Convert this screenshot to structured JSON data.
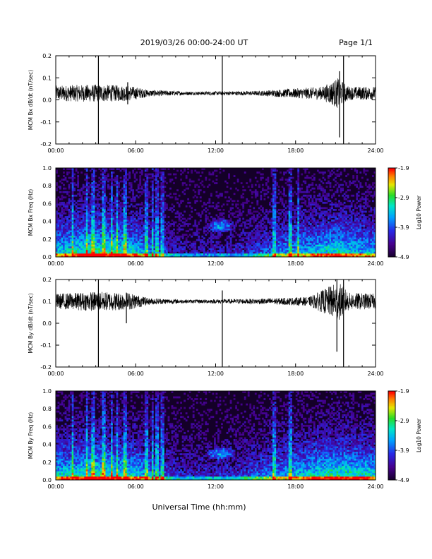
{
  "header": {
    "title": "2019/03/26  00:00-24:00 UT",
    "page": "Page 1/1"
  },
  "xlabel": "Universal Time (hh:mm)",
  "colorbar_label": "Log10 Power",
  "chart_data": [
    {
      "type": "line",
      "ylabel": "MCM Bx dB/dt (nT/sec)",
      "xlim": [
        0,
        24
      ],
      "ylim": [
        -0.2,
        0.2
      ],
      "x_ticks": [
        "00:00",
        "06:00",
        "12:00",
        "18:00",
        "24:00"
      ],
      "y_ticks": [
        "-0.2",
        "-0.1",
        "0.0",
        "0.1",
        "0.2"
      ],
      "baseline": 0.03,
      "noise_envelope": [
        {
          "x": 0,
          "amp": 0.035
        },
        {
          "x": 3,
          "amp": 0.04
        },
        {
          "x": 5.5,
          "amp": 0.035
        },
        {
          "x": 7,
          "amp": 0.015
        },
        {
          "x": 10,
          "amp": 0.008
        },
        {
          "x": 15,
          "amp": 0.01
        },
        {
          "x": 20,
          "amp": 0.03
        },
        {
          "x": 21.2,
          "amp": 0.07
        },
        {
          "x": 22,
          "amp": 0.03
        },
        {
          "x": 24,
          "amp": 0.03
        }
      ],
      "spikes": [
        {
          "x": 3.2,
          "ymin": -0.2,
          "ymax": 0.2
        },
        {
          "x": 12.5,
          "ymin": -0.2,
          "ymax": 0.2
        },
        {
          "x": 21.6,
          "ymin": -0.2,
          "ymax": 0.2
        },
        {
          "x": 21.3,
          "ymin": -0.17,
          "ymax": 0.13
        },
        {
          "x": 5.4,
          "ymin": -0.02,
          "ymax": 0.08
        }
      ]
    },
    {
      "type": "heatmap",
      "ylabel": "MCM Bx Freq (Hz)",
      "xlim": [
        0,
        24
      ],
      "ylim": [
        0.0,
        1.0
      ],
      "x_ticks": [
        "00:00",
        "06:00",
        "12:00",
        "18:00",
        "24:00"
      ],
      "y_ticks": [
        "0.0",
        "0.2",
        "0.4",
        "0.6",
        "0.8",
        "1.0"
      ],
      "colorbar": {
        "min": -4.9,
        "max": -1.9,
        "ticks": [
          "-1.9",
          "-2.9",
          "-3.9",
          "-4.9"
        ]
      },
      "activity": [
        {
          "x": 0,
          "level": 0.55
        },
        {
          "x": 3,
          "level": 0.7
        },
        {
          "x": 6,
          "level": 0.6
        },
        {
          "x": 8,
          "level": 0.3
        },
        {
          "x": 10,
          "level": 0.2
        },
        {
          "x": 14,
          "level": 0.25
        },
        {
          "x": 17,
          "level": 0.45
        },
        {
          "x": 21,
          "level": 0.65
        },
        {
          "x": 24,
          "level": 0.5
        }
      ],
      "vertical_bands": [
        1.3,
        2.3,
        2.8,
        3.6,
        4.2,
        4.6,
        5.2,
        6.8,
        7.3,
        7.6,
        8.0,
        16.4,
        17.6,
        18.2
      ],
      "blob": {
        "x": 12.4,
        "freq": 0.35,
        "width": 2.2,
        "height": 0.18
      }
    },
    {
      "type": "line",
      "ylabel": "MCM By dB/dt (nT/sec)",
      "xlim": [
        0,
        24
      ],
      "ylim": [
        -0.2,
        0.2
      ],
      "x_ticks": [
        "00:00",
        "06:00",
        "12:00",
        "18:00",
        "24:00"
      ],
      "y_ticks": [
        "-0.2",
        "-0.1",
        "0.0",
        "0.1",
        "0.2"
      ],
      "baseline": 0.1,
      "noise_envelope": [
        {
          "x": 0,
          "amp": 0.035
        },
        {
          "x": 3,
          "amp": 0.045
        },
        {
          "x": 5.5,
          "amp": 0.04
        },
        {
          "x": 7,
          "amp": 0.015
        },
        {
          "x": 10,
          "amp": 0.008
        },
        {
          "x": 15,
          "amp": 0.012
        },
        {
          "x": 19,
          "amp": 0.02
        },
        {
          "x": 21.2,
          "amp": 0.09
        },
        {
          "x": 22,
          "amp": 0.04
        },
        {
          "x": 24,
          "amp": 0.035
        }
      ],
      "spikes": [
        {
          "x": 3.2,
          "ymin": -0.2,
          "ymax": 0.2
        },
        {
          "x": 12.5,
          "ymin": -0.2,
          "ymax": 0.15
        },
        {
          "x": 21.6,
          "ymin": -0.2,
          "ymax": 0.2
        },
        {
          "x": 21.1,
          "ymin": -0.13,
          "ymax": 0.2
        },
        {
          "x": 5.3,
          "ymin": 0.0,
          "ymax": 0.14
        }
      ]
    },
    {
      "type": "heatmap",
      "ylabel": "MCM By Freq (Hz)",
      "xlim": [
        0,
        24
      ],
      "ylim": [
        0.0,
        1.0
      ],
      "x_ticks": [
        "00:00",
        "06:00",
        "12:00",
        "18:00",
        "24:00"
      ],
      "y_ticks": [
        "0.0",
        "0.2",
        "0.4",
        "0.6",
        "0.8",
        "1.0"
      ],
      "colorbar": {
        "min": -4.9,
        "max": -1.9,
        "ticks": [
          "-1.9",
          "-2.9",
          "-3.9",
          "-4.9"
        ]
      },
      "activity": [
        {
          "x": 0,
          "level": 0.6
        },
        {
          "x": 3,
          "level": 0.7
        },
        {
          "x": 6,
          "level": 0.6
        },
        {
          "x": 8,
          "level": 0.35
        },
        {
          "x": 10,
          "level": 0.25
        },
        {
          "x": 14,
          "level": 0.3
        },
        {
          "x": 17,
          "level": 0.5
        },
        {
          "x": 21,
          "level": 0.7
        },
        {
          "x": 24,
          "level": 0.6
        }
      ],
      "vertical_bands": [
        1.3,
        2.3,
        2.8,
        3.6,
        4.2,
        4.6,
        5.2,
        6.8,
        7.3,
        7.6,
        8.0,
        16.4,
        17.6
      ],
      "blob": {
        "x": 12.4,
        "freq": 0.3,
        "width": 2.2,
        "height": 0.16
      }
    }
  ]
}
